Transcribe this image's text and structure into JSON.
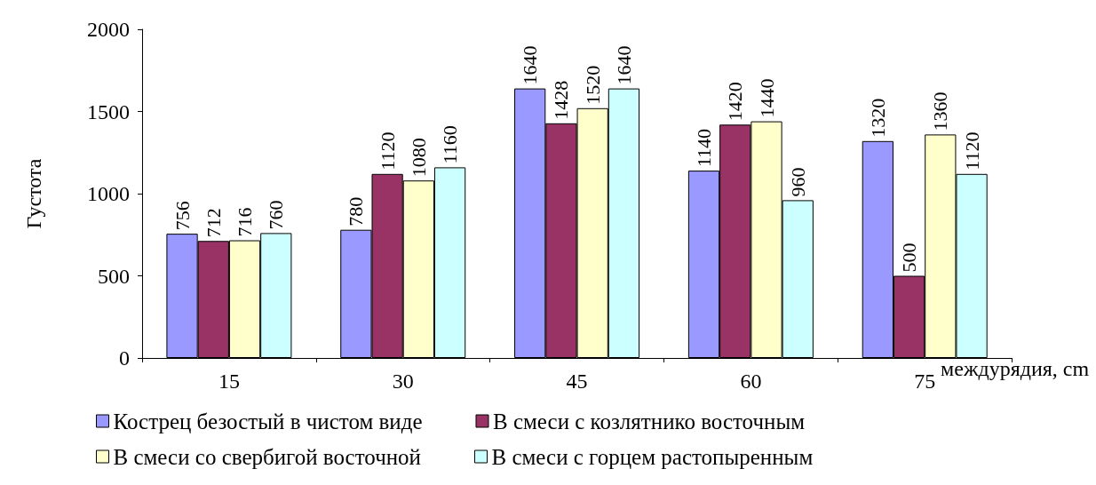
{
  "chart_data": {
    "type": "bar",
    "ylabel": "Густота",
    "xlabel": "междурядия, cm",
    "categories": [
      "15",
      "30",
      "45",
      "60",
      "75"
    ],
    "series": [
      {
        "name": "Кострец безостый в чистом виде",
        "color": "#9999ff",
        "values": [
          756,
          780,
          1640,
          1140,
          1320
        ]
      },
      {
        "name": "В смеси с козлятнико восточным",
        "color": "#993366",
        "values": [
          712,
          1120,
          1428,
          1420,
          500
        ]
      },
      {
        "name": "В смеси со свербигой восточной",
        "color": "#ffffcc",
        "values": [
          716,
          1080,
          1520,
          1440,
          1360
        ]
      },
      {
        "name": "В смеси с горцем растопыренным",
        "color": "#ccffff",
        "values": [
          760,
          1160,
          1640,
          960,
          1120
        ]
      }
    ],
    "ylim": [
      0,
      2000
    ],
    "yticks": [
      0,
      500,
      1000,
      1500,
      2000
    ],
    "data_labels": true,
    "legend": "bottom",
    "grid": false
  }
}
